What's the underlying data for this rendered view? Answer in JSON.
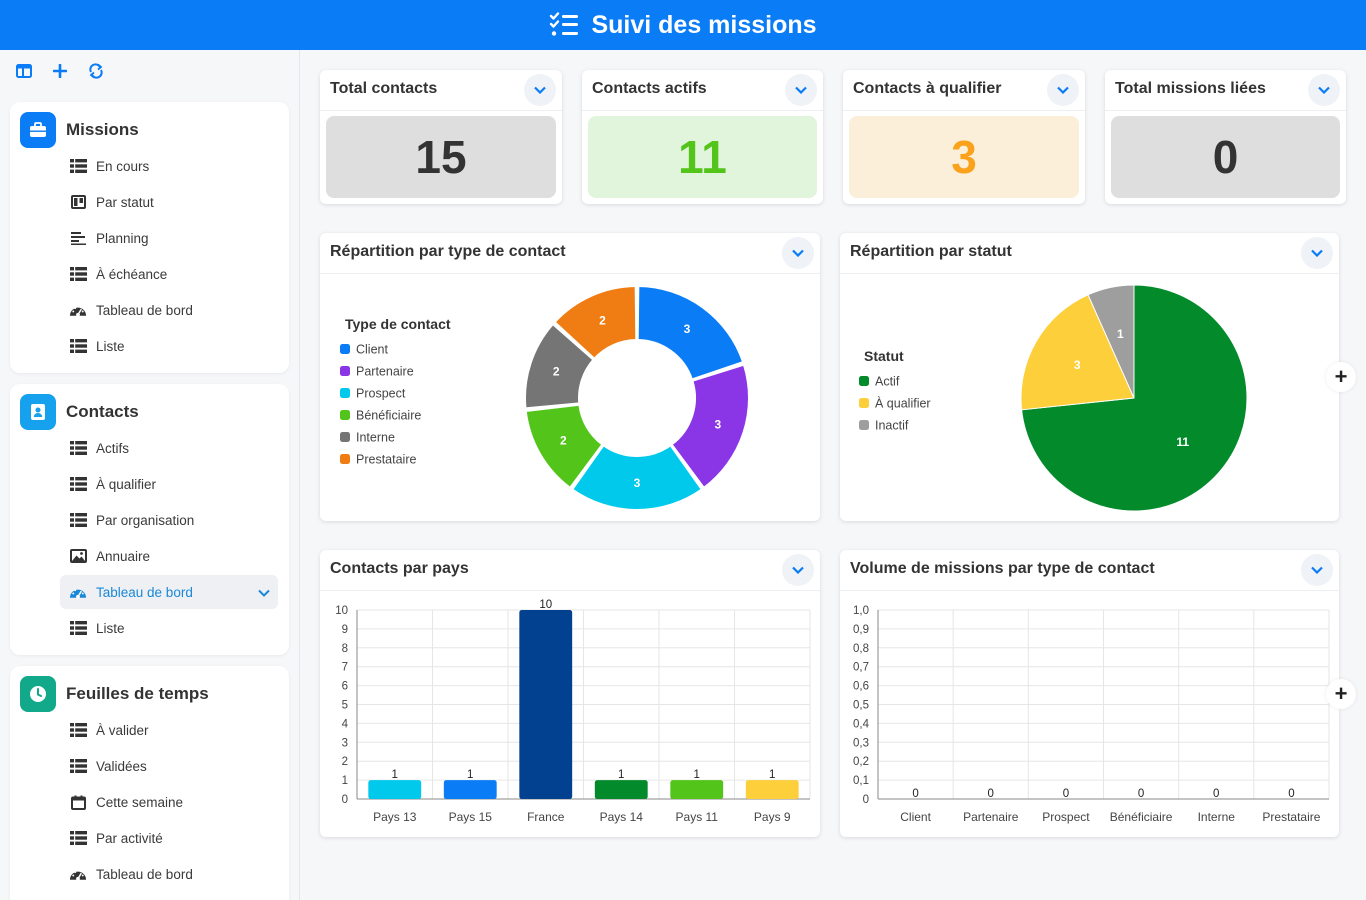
{
  "header": {
    "title": "Suivi des missions",
    "icon": "checklist-icon",
    "bg_color": "#0a7cf6"
  },
  "sidebar": {
    "tools": [
      {
        "icon": "layout-icon"
      },
      {
        "icon": "plus-icon"
      },
      {
        "icon": "sync-icon"
      }
    ],
    "sections": [
      {
        "title": "Missions",
        "icon": "briefcase-icon",
        "color": "#0a7cf6",
        "items": [
          {
            "label": "En cours",
            "icon": "list-icon"
          },
          {
            "label": "Par statut",
            "icon": "kanban-icon"
          },
          {
            "label": "Planning",
            "icon": "gantt-icon"
          },
          {
            "label": "À échéance",
            "icon": "list-icon"
          },
          {
            "label": "Tableau de bord",
            "icon": "dashboard-icon"
          },
          {
            "label": "Liste",
            "icon": "list-icon"
          }
        ]
      },
      {
        "title": "Contacts",
        "icon": "contact-book-icon",
        "color": "#16a1ee",
        "items": [
          {
            "label": "Actifs",
            "icon": "list-icon"
          },
          {
            "label": "À qualifier",
            "icon": "list-icon"
          },
          {
            "label": "Par organisation",
            "icon": "list-icon"
          },
          {
            "label": "Annuaire",
            "icon": "gallery-icon"
          },
          {
            "label": "Tableau de bord",
            "icon": "dashboard-icon",
            "active": true
          },
          {
            "label": "Liste",
            "icon": "list-icon"
          }
        ]
      },
      {
        "title": "Feuilles de temps",
        "icon": "clock-icon",
        "color": "#12a88a",
        "items": [
          {
            "label": "À valider",
            "icon": "list-icon"
          },
          {
            "label": "Validées",
            "icon": "list-icon"
          },
          {
            "label": "Cette semaine",
            "icon": "calendar-icon"
          },
          {
            "label": "Par activité",
            "icon": "list-icon"
          },
          {
            "label": "Tableau de bord",
            "icon": "dashboard-icon"
          }
        ]
      }
    ]
  },
  "kpis": [
    {
      "title": "Total contacts",
      "value": "15",
      "bg": "#dedede",
      "color": "#333333"
    },
    {
      "title": "Contacts actifs",
      "value": "11",
      "bg": "#e1f4dc",
      "color": "#52c41a"
    },
    {
      "title": "Contacts à qualifier",
      "value": "3",
      "bg": "#fcefd9",
      "color": "#faa21b"
    },
    {
      "title": "Total missions liées",
      "value": "0",
      "bg": "#dedede",
      "color": "#333333"
    }
  ],
  "charts": {
    "type_contact": {
      "title": "Répartition par type de contact"
    },
    "statut": {
      "title": "Répartition par statut"
    },
    "pays": {
      "title": "Contacts par pays"
    },
    "volume": {
      "title": "Volume de missions par type de contact"
    }
  },
  "chart_data": [
    {
      "type": "pie",
      "variant": "donut",
      "title": "Répartition par type de contact",
      "legend_title": "Type de contact",
      "legend_placement": "left",
      "categories": [
        "Client",
        "Partenaire",
        "Prospect",
        "Bénéficiaire",
        "Interne",
        "Prestataire"
      ],
      "values": [
        3,
        3,
        3,
        2,
        2,
        2
      ],
      "colors": [
        "#0a7cf6",
        "#8a35e6",
        "#00c9ec",
        "#52c41a",
        "#757575",
        "#f07d14"
      ]
    },
    {
      "type": "pie",
      "title": "Répartition par statut",
      "legend_title": "Statut",
      "legend_placement": "left",
      "categories": [
        "Actif",
        "À qualifier",
        "Inactif"
      ],
      "values": [
        11,
        3,
        1
      ],
      "colors": [
        "#028a2b",
        "#fdcf3b",
        "#9e9e9e"
      ]
    },
    {
      "type": "bar",
      "title": "Contacts par pays",
      "categories": [
        "Pays 13",
        "Pays 15",
        "France",
        "Pays 14",
        "Pays 11",
        "Pays 9"
      ],
      "values": [
        1,
        1,
        10,
        1,
        1,
        1
      ],
      "colors": [
        "#00c9ec",
        "#0a7cf6",
        "#02418f",
        "#028a2b",
        "#52c41a",
        "#fdcf3b"
      ],
      "ylim": [
        0,
        10
      ],
      "yticks": [
        "0",
        "1",
        "2",
        "3",
        "4",
        "5",
        "6",
        "7",
        "8",
        "9",
        "10"
      ],
      "grid": true
    },
    {
      "type": "bar",
      "title": "Volume de missions par type de contact",
      "categories": [
        "Client",
        "Partenaire",
        "Prospect",
        "Bénéficiaire",
        "Interne",
        "Prestataire"
      ],
      "values": [
        0,
        0,
        0,
        0,
        0,
        0
      ],
      "ylim": [
        0,
        1
      ],
      "yticks": [
        "0",
        "0,1",
        "0,2",
        "0,3",
        "0,4",
        "0,5",
        "0,6",
        "0,7",
        "0,8",
        "0,9",
        "1,0"
      ],
      "grid": true
    }
  ]
}
